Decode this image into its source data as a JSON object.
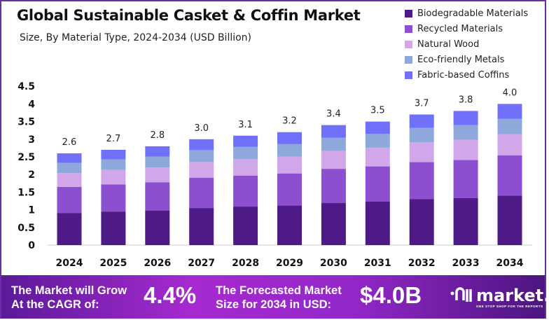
{
  "chart_data": {
    "type": "bar",
    "stacked": true,
    "title": "Global Sustainable Casket & Coffin Market",
    "subtitle": "Size, By Material Type, 2024-2034 (USD Billion)",
    "xlabel": "",
    "ylabel": "",
    "ylim": [
      0,
      4.5
    ],
    "yticks": [
      "0",
      "0.5",
      "1",
      "1.5",
      "2",
      "2.5",
      "3",
      "3.5",
      "4",
      "4.5"
    ],
    "grid": false,
    "legend_position": "top-right",
    "categories": [
      "2024",
      "2025",
      "2026",
      "2027",
      "2028",
      "2029",
      "2030",
      "2031",
      "2032",
      "2033",
      "2034"
    ],
    "totals": [
      2.6,
      2.7,
      2.8,
      3.0,
      3.1,
      3.2,
      3.4,
      3.5,
      3.7,
      3.8,
      4.0
    ],
    "total_labels": [
      "2.6",
      "2.7",
      "2.8",
      "3.0",
      "3.1",
      "3.2",
      "3.4",
      "3.5",
      "3.7",
      "3.8",
      "4.0"
    ],
    "series": [
      {
        "name": "Biodegradable Materials",
        "color": "#4e1a87",
        "values": [
          0.91,
          0.95,
          0.98,
          1.05,
          1.09,
          1.12,
          1.19,
          1.23,
          1.3,
          1.33,
          1.4
        ]
      },
      {
        "name": "Recycled Materials",
        "color": "#8b4fcf",
        "values": [
          0.74,
          0.77,
          0.8,
          0.86,
          0.88,
          0.91,
          0.97,
          1.0,
          1.05,
          1.08,
          1.14
        ]
      },
      {
        "name": "Natural Wood",
        "color": "#d2a7ea",
        "values": [
          0.39,
          0.41,
          0.42,
          0.45,
          0.47,
          0.48,
          0.51,
          0.53,
          0.56,
          0.57,
          0.6
        ]
      },
      {
        "name": "Eco-friendly Metals",
        "color": "#8fa8db",
        "values": [
          0.29,
          0.3,
          0.31,
          0.33,
          0.34,
          0.35,
          0.37,
          0.39,
          0.41,
          0.42,
          0.44
        ]
      },
      {
        "name": "Fabric-based Coffins",
        "color": "#7070fa",
        "values": [
          0.27,
          0.27,
          0.29,
          0.31,
          0.32,
          0.34,
          0.36,
          0.35,
          0.38,
          0.4,
          0.42
        ]
      }
    ]
  },
  "footer": {
    "cagr_text_1": "The Market will Grow",
    "cagr_text_2": "At the CAGR of:",
    "cagr_value": "4.4%",
    "size_text_1": "The Forecasted Market",
    "size_text_2": "Size for 2034 in USD:",
    "size_value": "$4.0B",
    "logo_name": "market.us",
    "logo_tagline": "ONE STOP SHOP FOR THE REPORTS"
  }
}
